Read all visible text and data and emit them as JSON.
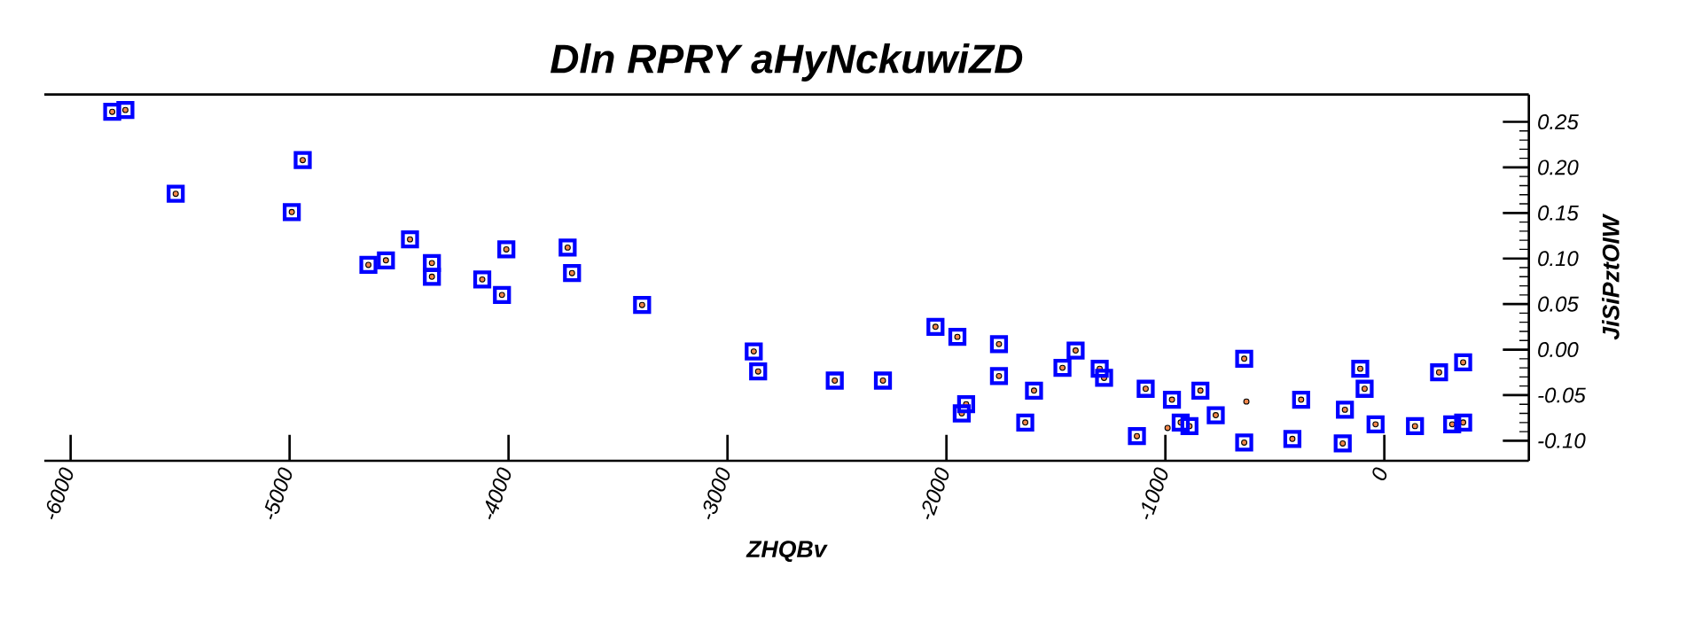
{
  "chart_data": {
    "type": "scatter",
    "title": "Dln RPRY aHyNckuwiZD",
    "xlabel": "ZHQBv",
    "ylabel": "JiSiPztOIW",
    "xlim": [
      -6120,
      660
    ],
    "ylim": [
      -0.122,
      0.28
    ],
    "xticks": [
      -6000,
      -5000,
      -4000,
      -3000,
      -2000,
      -1000,
      0
    ],
    "yticks": [
      {
        "value": 0.25,
        "label": "0.25"
      },
      {
        "value": 0.2,
        "label": "0.20"
      },
      {
        "value": 0.15,
        "label": "0.15"
      },
      {
        "value": 0.1,
        "label": "0.10"
      },
      {
        "value": 0.05,
        "label": "0.05"
      },
      {
        "value": 0,
        "label": "0.00"
      },
      {
        "value": -0.05,
        "label": "-0.05"
      },
      {
        "value": -0.1,
        "label": "-0.10"
      }
    ],
    "series": [
      {
        "color": "#f4874a",
        "marker": "circle",
        "x": [
          -5810,
          -5750,
          -5520,
          -4940,
          -4990,
          -4640,
          -4560,
          -4450,
          -4350,
          -4350,
          -4120,
          -4030,
          -4010,
          -3730,
          -3710,
          -3390,
          -2880,
          -2860,
          -2510,
          -2290,
          -2050,
          -1950,
          -1910,
          -1930,
          -1760,
          -1760,
          -1600,
          -1640,
          -1470,
          -1410,
          -1300,
          -1280,
          -1130,
          -1090,
          -970,
          -990,
          -930,
          -890,
          -840,
          -770,
          -640,
          -630,
          -640,
          -420,
          -380,
          -180,
          -190,
          -110,
          -90,
          -40,
          140,
          250,
          310,
          360,
          360
        ],
        "values": [
          0.261,
          0.263,
          0.171,
          0.208,
          0.151,
          0.093,
          0.098,
          0.121,
          0.095,
          0.08,
          0.077,
          0.06,
          0.11,
          0.112,
          0.084,
          0.049,
          -0.002,
          -0.024,
          -0.034,
          -0.034,
          0.025,
          0.014,
          -0.06,
          -0.07,
          0.006,
          -0.029,
          -0.045,
          -0.08,
          -0.02,
          -0.001,
          -0.021,
          -0.031,
          -0.095,
          -0.043,
          -0.055,
          -0.086,
          -0.08,
          -0.084,
          -0.045,
          -0.072,
          -0.01,
          -0.057,
          -0.102,
          -0.098,
          -0.055,
          -0.066,
          -0.103,
          -0.021,
          -0.043,
          -0.082,
          -0.084,
          -0.025,
          -0.082,
          -0.08,
          -0.014
        ]
      },
      {
        "color": "#0000ff",
        "marker": "square",
        "x": [
          -5810,
          -5750,
          -5520,
          -4940,
          -4990,
          -4640,
          -4560,
          -4450,
          -4350,
          -4350,
          -4120,
          -4030,
          -4010,
          -3730,
          -3710,
          -3390,
          -2880,
          -2860,
          -2510,
          -2290,
          -2050,
          -1950,
          -1910,
          -1930,
          -1760,
          -1760,
          -1600,
          -1640,
          -1470,
          -1410,
          -1300,
          -1280,
          -1130,
          -1090,
          -970,
          -930,
          -890,
          -840,
          -770,
          -640,
          -640,
          -420,
          -380,
          -180,
          -190,
          -110,
          -90,
          -40,
          140,
          250,
          310,
          360,
          360
        ],
        "values": [
          0.261,
          0.263,
          0.171,
          0.208,
          0.151,
          0.093,
          0.098,
          0.121,
          0.095,
          0.08,
          0.077,
          0.06,
          0.11,
          0.112,
          0.084,
          0.049,
          -0.002,
          -0.024,
          -0.034,
          -0.034,
          0.025,
          0.014,
          -0.06,
          -0.07,
          0.006,
          -0.029,
          -0.045,
          -0.08,
          -0.02,
          -0.001,
          -0.021,
          -0.031,
          -0.095,
          -0.043,
          -0.055,
          -0.08,
          -0.084,
          -0.045,
          -0.072,
          -0.01,
          -0.102,
          -0.098,
          -0.055,
          -0.066,
          -0.103,
          -0.021,
          -0.043,
          -0.082,
          -0.084,
          -0.025,
          -0.082,
          -0.08,
          -0.014
        ]
      }
    ]
  }
}
